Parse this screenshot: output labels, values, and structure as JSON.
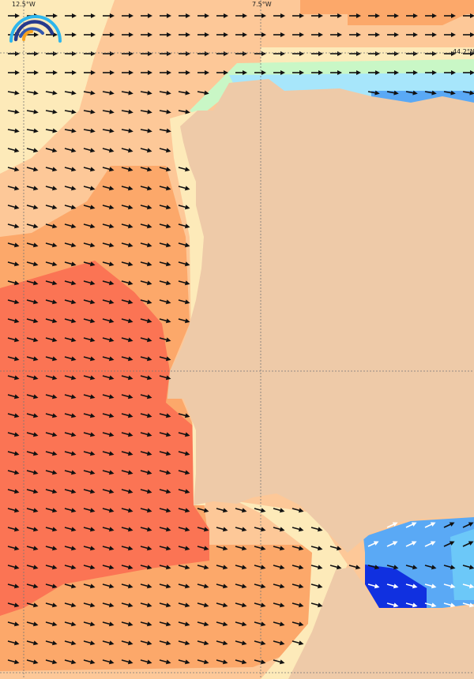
{
  "map": {
    "grid_labels": {
      "lon_left": "12.5°W",
      "lon_right": "7.5°W",
      "lat_top": "44.2°N"
    },
    "colors": {
      "land": "#eecaa8",
      "pale": "#fdeab9",
      "light_orange": "#fdc898",
      "orange": "#fca86a",
      "red_orange": "#fb7454",
      "light_green": "#c9f7c6",
      "light_blue": "#a7e6fb",
      "blue": "#5aa9f5",
      "deep_blue": "#1030e0",
      "arrow": "#111111"
    },
    "logo": "wave-arcs-logo",
    "arrow_direction": "east-southeast"
  }
}
